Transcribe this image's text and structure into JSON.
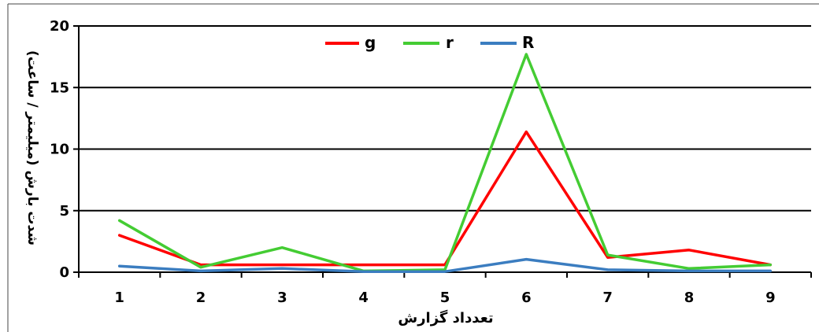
{
  "chart_data": {
    "type": "line",
    "title": "",
    "xlabel": "تعدداد گزارش",
    "ylabel": "شدت بارش (میلیمتر / ساعت)",
    "categories": [
      "1",
      "2",
      "3",
      "4",
      "5",
      "6",
      "7",
      "8",
      "9"
    ],
    "ylim": [
      0,
      20
    ],
    "yticks": [
      "0",
      "5",
      "10",
      "15",
      "20"
    ],
    "grid": "horizontal",
    "legend_position": "top",
    "series": [
      {
        "name": "g",
        "color": "#ff0000",
        "values": [
          3.0,
          0.6,
          0.6,
          0.6,
          0.6,
          11.4,
          1.2,
          1.8,
          0.6
        ]
      },
      {
        "name": "r",
        "color": "#44cc33",
        "values": [
          4.2,
          0.4,
          2.0,
          0.1,
          0.2,
          17.7,
          1.4,
          0.3,
          0.6
        ]
      },
      {
        "name": "R",
        "color": "#3b7dc0",
        "values": [
          0.5,
          0.1,
          0.3,
          0.05,
          0.05,
          1.05,
          0.2,
          0.1,
          0.1
        ]
      }
    ]
  }
}
